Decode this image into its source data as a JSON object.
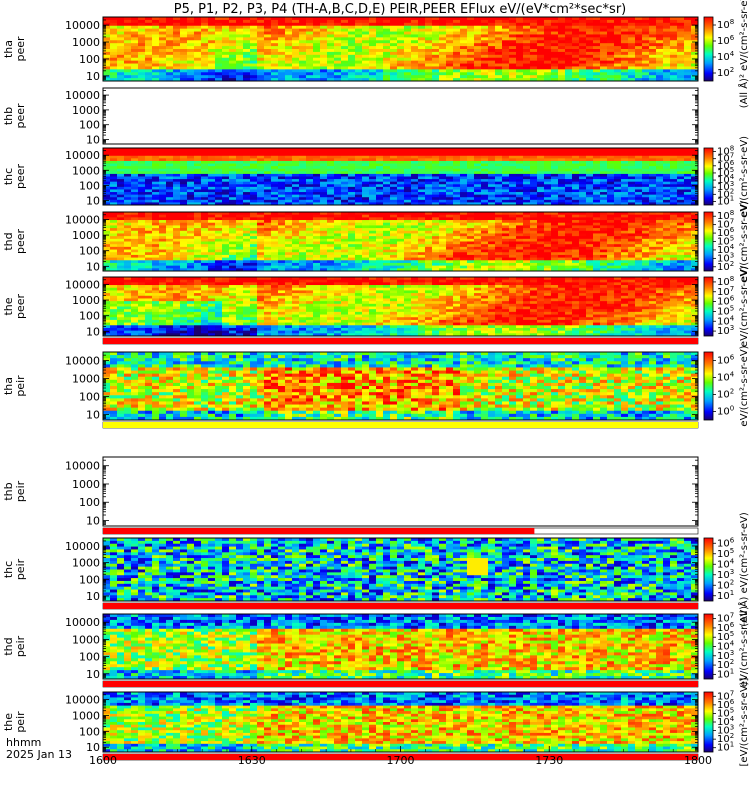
{
  "title": "P5, P1, P2, P3, P4 (TH-A,B,C,D,E) PEIR,PEER EFlux eV/(eV*cm²*sec*sr)",
  "footer": {
    "time_label": "hhmm",
    "date_label": "2025 Jan 13"
  },
  "colors": {
    "flag_red": "#ff0000",
    "flag_yellow": "#ffff00",
    "axis": "#000000"
  },
  "chart_data": {
    "type": "heatmap",
    "x_ticks": [
      "1600",
      "1630",
      "1700",
      "1730",
      "1800"
    ],
    "x_range": [
      "16:00",
      "18:00"
    ],
    "y_ticks": [
      "10",
      "100",
      "1000",
      "10000"
    ],
    "y_scale": "log",
    "y_range": [
      5,
      30000
    ],
    "panels": [
      {
        "probe": "tha",
        "species": "peer",
        "has_data": true,
        "colorbar_exponents": [
          "2",
          "4",
          "6",
          "8"
        ],
        "colorbar_range": [
          1,
          100000000
        ],
        "colorbar_title": "(All Å)² eV/(cm²-s-sr-eV)",
        "flag_bar": null
      },
      {
        "probe": "thb",
        "species": "peer",
        "has_data": false,
        "colorbar_exponents": [],
        "colorbar_range": null,
        "colorbar_title": "",
        "flag_bar": null
      },
      {
        "probe": "thc",
        "species": "peer",
        "has_data": true,
        "colorbar_exponents": [
          "1",
          "2",
          "3",
          "4",
          "5",
          "6",
          "7",
          "8"
        ],
        "colorbar_range": [
          10,
          100000000
        ],
        "colorbar_title": "eV/(cm²-s-sr-eV)",
        "flag_bar": null
      },
      {
        "probe": "thd",
        "species": "peer",
        "has_data": true,
        "colorbar_exponents": [
          "2",
          "3",
          "4",
          "5",
          "6",
          "7",
          "8"
        ],
        "colorbar_range": [
          100,
          100000000
        ],
        "colorbar_title": "eV/(cm²-s-sr-eV)",
        "flag_bar": null
      },
      {
        "probe": "the",
        "species": "peer",
        "has_data": true,
        "colorbar_exponents": [
          "3",
          "4",
          "5",
          "6",
          "7",
          "8"
        ],
        "colorbar_range": [
          1000,
          100000000
        ],
        "colorbar_title": "eV/(cm²-s-sr-eV)",
        "flag_bar": "red"
      },
      {
        "probe": "tha",
        "species": "peir",
        "has_data": true,
        "colorbar_exponents": [
          "0",
          "2",
          "4",
          "6"
        ],
        "colorbar_range": [
          1,
          10000000
        ],
        "colorbar_title": "eV/(cm²-s-sr-eV)",
        "flag_bar": "yellow"
      },
      {
        "probe": "thb",
        "species": "peir",
        "has_data": false,
        "colorbar_exponents": [],
        "colorbar_range": null,
        "colorbar_title": "",
        "flag_bar": "red-partial"
      },
      {
        "probe": "thc",
        "species": "peir",
        "has_data": true,
        "colorbar_exponents": [
          "1",
          "2",
          "3",
          "4",
          "5",
          "6"
        ],
        "colorbar_range": [
          10,
          1000000
        ],
        "colorbar_title": "(All Å) eV/(cm²-s-sr-eV)",
        "flag_bar": "red"
      },
      {
        "probe": "thd",
        "species": "peir",
        "has_data": true,
        "colorbar_exponents": [
          "1",
          "2",
          "3",
          "4",
          "5",
          "6",
          "7"
        ],
        "colorbar_range": [
          10,
          10000000
        ],
        "colorbar_title": "eV/(cm²-s-sr-eV)",
        "flag_bar": "red"
      },
      {
        "probe": "the",
        "species": "peir",
        "has_data": true,
        "colorbar_exponents": [
          "1",
          "2",
          "3",
          "4",
          "5",
          "6",
          "7"
        ],
        "colorbar_range": [
          10,
          10000000
        ],
        "colorbar_title": "[eV/(cm²-s-sr-eV)]",
        "flag_bar": "red"
      }
    ]
  }
}
